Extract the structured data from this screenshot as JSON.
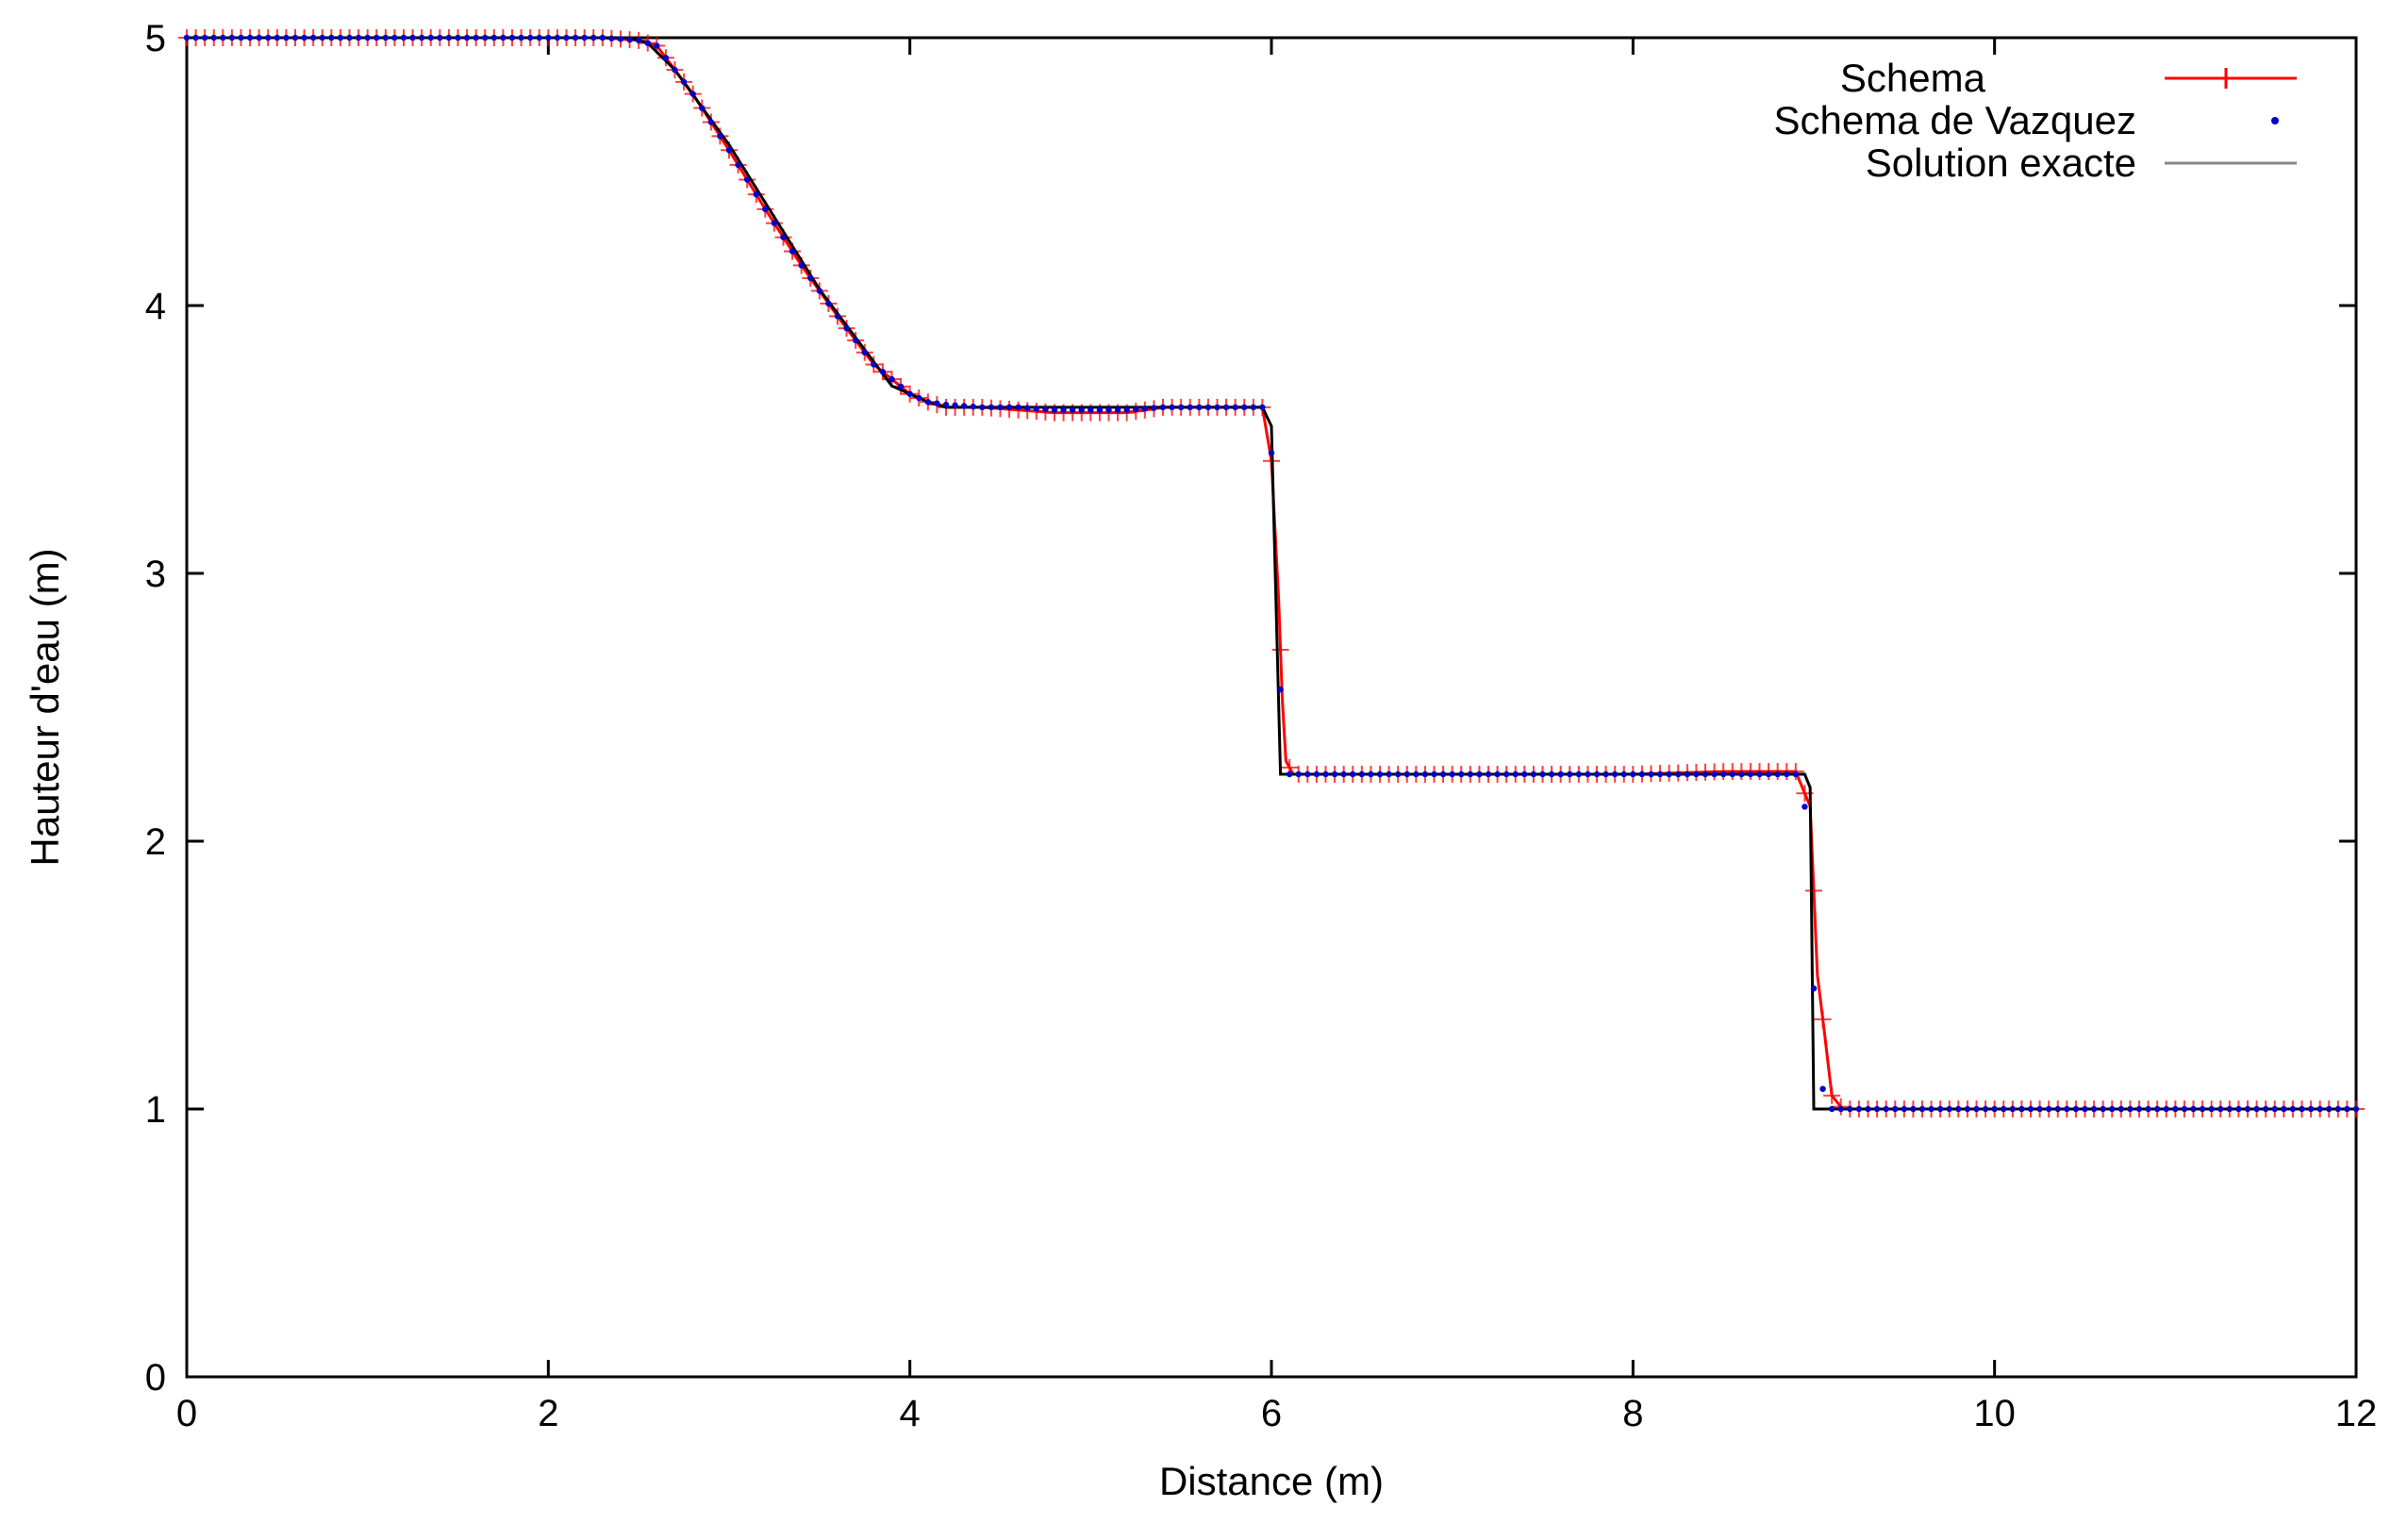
{
  "chart_data": {
    "type": "line",
    "title": "",
    "xlabel": "Distance (m)",
    "ylabel": "Hauteur d'eau (m)",
    "xlim": [
      0,
      12
    ],
    "ylim": [
      0,
      5
    ],
    "grid": false,
    "legend_position": "top-right",
    "x_ticks": [
      "0",
      "2",
      "4",
      "6",
      "8",
      "10",
      "12"
    ],
    "y_ticks": [
      "0",
      "1",
      "2",
      "3",
      "4",
      "5"
    ],
    "colors": {
      "schema": "#ff0000",
      "vazquez": "#0000cc",
      "exact": "#000000",
      "legend_exact": "#888888"
    },
    "series": [
      {
        "name": "Schema",
        "style": "line-plus",
        "x": [
          0,
          0.5,
          1,
          1.5,
          2,
          2.3,
          2.5,
          2.6,
          2.7,
          2.8,
          3.0,
          3.2,
          3.4,
          3.6,
          3.8,
          4.0,
          4.1,
          4.2,
          4.4,
          4.6,
          4.8,
          5.0,
          5.2,
          5.4,
          5.6,
          5.8,
          5.95,
          6.0,
          6.04,
          6.06,
          6.08,
          6.12,
          6.3,
          6.6,
          7.0,
          7.5,
          8.0,
          8.5,
          8.9,
          8.98,
          9.02,
          9.06,
          9.1,
          9.16,
          9.3,
          9.6,
          10,
          10.5,
          11,
          11.5,
          12
        ],
        "y": [
          5,
          5,
          5,
          5,
          5,
          5,
          4.99,
          4.97,
          4.88,
          4.79,
          4.58,
          4.36,
          4.15,
          3.96,
          3.78,
          3.67,
          3.64,
          3.62,
          3.62,
          3.61,
          3.6,
          3.6,
          3.6,
          3.62,
          3.62,
          3.62,
          3.62,
          3.42,
          2.9,
          2.53,
          2.3,
          2.25,
          2.25,
          2.25,
          2.25,
          2.25,
          2.25,
          2.26,
          2.26,
          2.13,
          1.5,
          1.28,
          1.05,
          1.0,
          1.0,
          1.0,
          1.0,
          1.0,
          1.0,
          1.0,
          1.0
        ]
      },
      {
        "name": "Schema de Vazquez",
        "style": "points",
        "x": [
          0,
          0.5,
          1,
          1.5,
          2,
          2.3,
          2.5,
          2.6,
          2.7,
          2.8,
          3.0,
          3.2,
          3.4,
          3.6,
          3.8,
          4.0,
          4.1,
          4.2,
          4.4,
          4.6,
          4.8,
          5.0,
          5.2,
          5.4,
          5.6,
          5.8,
          5.95,
          6.0,
          6.04,
          6.07,
          6.1,
          6.3,
          6.6,
          7.0,
          7.5,
          8.0,
          8.5,
          8.9,
          8.97,
          9.0,
          9.04,
          9.08,
          9.12,
          9.3,
          9.6,
          10,
          10.5,
          11,
          11.5,
          12
        ],
        "y": [
          5,
          5,
          5,
          5,
          5,
          5,
          4.99,
          4.97,
          4.88,
          4.79,
          4.58,
          4.36,
          4.15,
          3.96,
          3.78,
          3.67,
          3.64,
          3.63,
          3.62,
          3.62,
          3.61,
          3.61,
          3.61,
          3.62,
          3.62,
          3.62,
          3.62,
          3.45,
          2.7,
          2.3,
          2.25,
          2.25,
          2.25,
          2.25,
          2.25,
          2.25,
          2.25,
          2.25,
          2.08,
          1.45,
          1.1,
          1.0,
          1.0,
          1.0,
          1.0,
          1.0,
          1.0,
          1.0,
          1.0,
          1.0
        ]
      },
      {
        "name": "Solution exacte",
        "style": "line",
        "x": [
          0,
          2.45,
          2.55,
          2.7,
          3.0,
          3.5,
          3.9,
          4.1,
          4.2,
          5.95,
          6.0,
          6.05,
          6.07,
          8.95,
          8.98,
          9.0,
          12
        ],
        "y": [
          5,
          5,
          4.98,
          4.88,
          4.6,
          4.06,
          3.7,
          3.64,
          3.62,
          3.62,
          3.55,
          2.25,
          2.25,
          2.25,
          2.2,
          1.0,
          1.0
        ]
      }
    ]
  }
}
